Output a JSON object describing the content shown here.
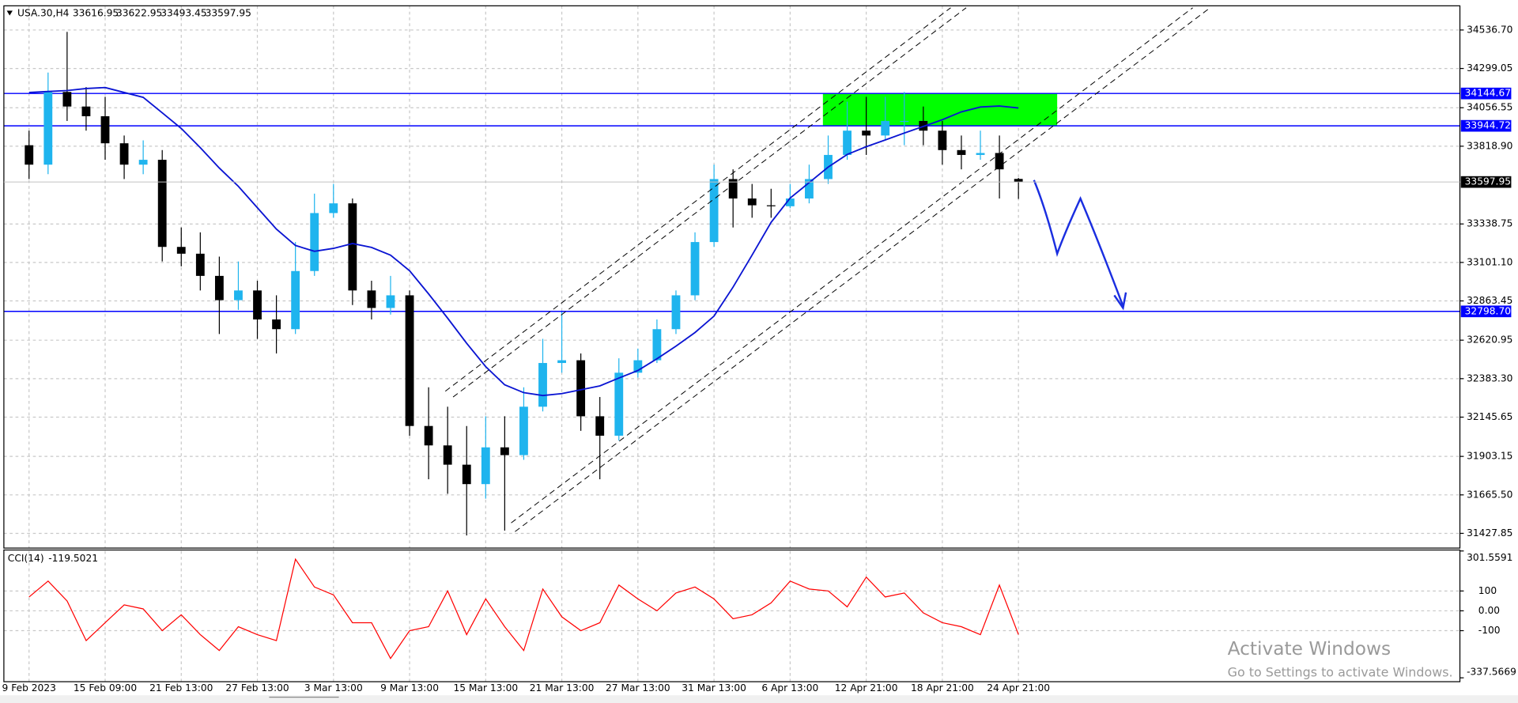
{
  "chart_data": [
    {
      "type": "candlestick",
      "title": "USA.30,H4",
      "categories": [
        "9 Feb 2023",
        null,
        null,
        null,
        "15 Feb 09:00",
        null,
        null,
        null,
        "21 Feb 13:00",
        null,
        null,
        null,
        "27 Feb 13:00",
        null,
        null,
        null,
        "3 Mar 13:00",
        null,
        null,
        null,
        "9 Mar 13:00",
        null,
        null,
        null,
        "15 Mar 13:00",
        null,
        null,
        null,
        "21 Mar 13:00",
        null,
        null,
        null,
        "27 Mar 13:00",
        null,
        null,
        null,
        "31 Mar 13:00",
        null,
        null,
        null,
        "6 Apr 13:00",
        null,
        null,
        null,
        "12 Apr 21:00",
        null,
        null,
        null,
        "18 Apr 21:00",
        null,
        null,
        null,
        "24 Apr 21:00"
      ],
      "open": [
        33825,
        33705,
        34154,
        34064,
        34004,
        33837,
        33705,
        33735,
        33197,
        33155,
        33018,
        32868,
        32928,
        32749,
        32689,
        33048,
        33406,
        33466,
        32928,
        32820,
        32898,
        32091,
        31971,
        31852,
        31732,
        31959,
        31911,
        32210,
        32480,
        32497,
        32151,
        32031,
        32420,
        32497,
        32689,
        32898,
        33227,
        33616,
        33496,
        33454,
        33448,
        33496,
        33616,
        33765,
        33915,
        33885,
        33975,
        33975,
        33915,
        33795,
        33765,
        33777,
        33616.95
      ],
      "high": [
        33915,
        34274,
        34525,
        34184,
        34124,
        33885,
        33855,
        33795,
        33317,
        33287,
        33137,
        33107,
        32988,
        32898,
        33227,
        33526,
        33586,
        33496,
        32988,
        33018,
        32928,
        32330,
        32210,
        32091,
        32151,
        32151,
        32330,
        32629,
        32796,
        32539,
        32270,
        32509,
        32569,
        32749,
        32928,
        33287,
        33705,
        33676,
        33586,
        33556,
        33586,
        33705,
        33885,
        34094,
        34124,
        34124,
        34154,
        34064,
        33975,
        33885,
        33915,
        33885,
        33622.95
      ],
      "low": [
        33616,
        33646,
        33975,
        33915,
        33735,
        33616,
        33646,
        33107,
        33077,
        32928,
        32659,
        32808,
        32629,
        32539,
        32659,
        33018,
        33377,
        32838,
        32749,
        32779,
        32031,
        31762,
        31672,
        31415,
        31642,
        31445,
        31882,
        32181,
        32420,
        32061,
        31762,
        32001,
        32390,
        32480,
        32659,
        32868,
        33197,
        33317,
        33377,
        33377,
        33436,
        33466,
        33586,
        33735,
        33765,
        33855,
        33825,
        33825,
        33705,
        33676,
        33735,
        33496,
        33493.45
      ],
      "close": [
        33705,
        34154,
        34064,
        34004,
        33837,
        33705,
        33735,
        33197,
        33155,
        33018,
        32868,
        32928,
        32749,
        32689,
        33048,
        33406,
        33466,
        32928,
        32820,
        32898,
        32091,
        31971,
        31852,
        31732,
        31959,
        31911,
        32210,
        32480,
        32497,
        32151,
        32031,
        32420,
        32497,
        32689,
        32898,
        33227,
        33616,
        33496,
        33454,
        33448,
        33496,
        33616,
        33765,
        33915,
        33885,
        33975,
        33975,
        33915,
        33795,
        33765,
        33777,
        33676,
        33597.95
      ],
      "up_color": "#1fb4ee",
      "down_color": "#000000",
      "overlay": {
        "color": "#0a14d2",
        "values": [
          34151,
          34157,
          34163,
          34175,
          34181,
          34151,
          34121,
          34025,
          33929,
          33810,
          33684,
          33571,
          33439,
          33307,
          33206,
          33170,
          33188,
          33218,
          33194,
          33146,
          33050,
          32907,
          32757,
          32602,
          32458,
          32345,
          32297,
          32279,
          32291,
          32315,
          32339,
          32387,
          32434,
          32506,
          32584,
          32668,
          32769,
          32949,
          33146,
          33349,
          33499,
          33594,
          33690,
          33768,
          33816,
          33858,
          33900,
          33941,
          33983,
          34031,
          34061,
          34067,
          34055
        ]
      },
      "hlines": {
        "color": "#0000ff",
        "values": [
          34144.67,
          33944.72,
          {
            "value": 32798.7,
            "label": "32798.70"
          }
        ]
      },
      "zone_color": "#00ff00",
      "ylim": [
        31337,
        34686
      ],
      "yticks": [
        {
          "value": 34536.7,
          "label": "34536.70"
        },
        34299.05,
        34056.55,
        {
          "value": 33818.9,
          "label": "33818.90"
        },
        33338.75,
        {
          "value": 33101.1,
          "label": "33101.10"
        },
        32863.45,
        32620.95,
        {
          "value": 32383.3,
          "label": "32383.30"
        },
        32145.65,
        31903.15,
        {
          "value": 31665.5,
          "label": "31665.50"
        },
        31427.85
      ],
      "grid": true
    },
    {
      "type": "line",
      "title": "CCI(14)",
      "color": "#ff0000",
      "values": [
        70,
        150,
        50,
        -150,
        -60,
        30,
        10,
        -100,
        -20,
        -120,
        -200,
        -80,
        -120,
        -150,
        260,
        120,
        80,
        -60,
        -60,
        -240,
        -100,
        -80,
        100,
        -120,
        60,
        -80,
        -200,
        110,
        -30,
        -100,
        -60,
        130,
        60,
        0,
        90,
        120,
        60,
        -40,
        -20,
        40,
        150,
        110,
        100,
        20,
        170,
        70,
        90,
        -10,
        -60,
        -80,
        -120,
        130,
        -119.5021
      ],
      "ylim": [
        -337.5669,
        301.5591
      ],
      "yticks": [
        301.5591,
        100,
        {
          "value": 0,
          "label": "0.00"
        },
        -100,
        -337.5669
      ],
      "grid": true
    }
  ],
  "watermark": {
    "title": "Activate Windows",
    "subtitle": "Go to Settings to activate Windows."
  }
}
